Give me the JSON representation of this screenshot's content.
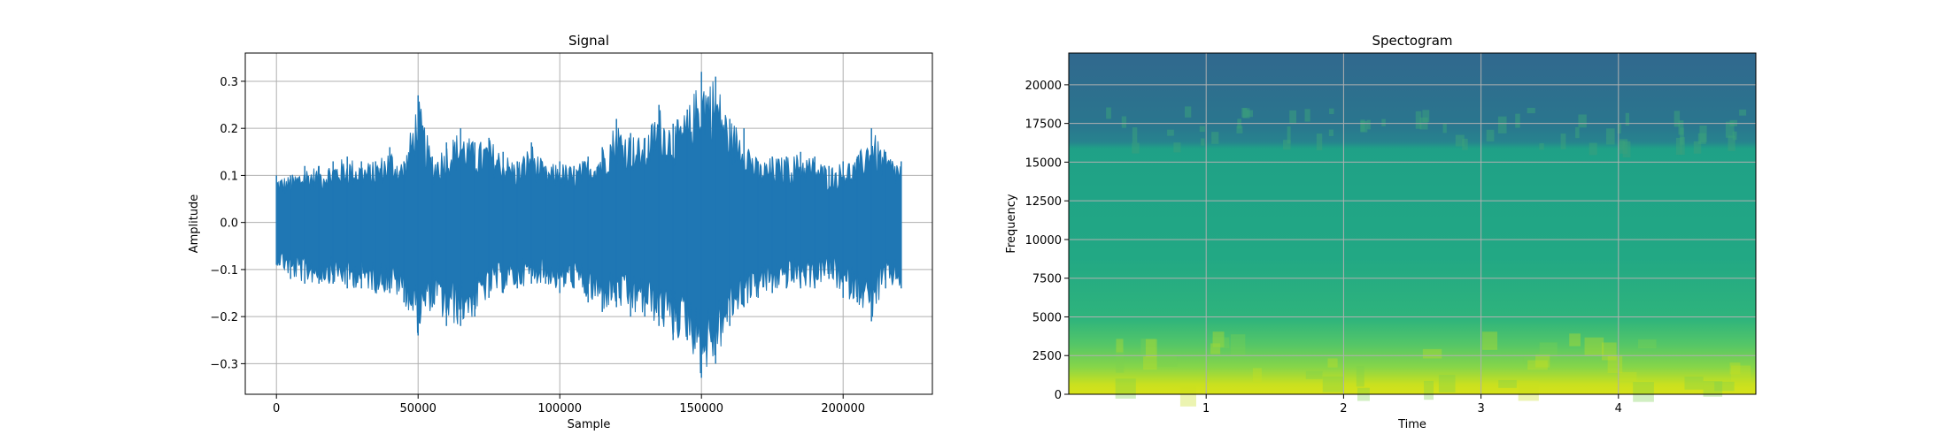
{
  "chart_data": [
    {
      "type": "line",
      "title": "Signal",
      "xlabel": "Sample",
      "ylabel": "Amplitude",
      "xlim": [
        -11000,
        231500
      ],
      "ylim": [
        -0.365,
        0.36
      ],
      "xticks": [
        0,
        50000,
        100000,
        150000,
        200000
      ],
      "xtick_labels": [
        "0",
        "50000",
        "100000",
        "150000",
        "200000"
      ],
      "yticks": [
        -0.3,
        -0.2,
        -0.1,
        0.0,
        0.1,
        0.2,
        0.3
      ],
      "ytick_labels": [
        "−0.3",
        "−0.2",
        "−0.1",
        "0.0",
        "0.1",
        "0.2",
        "0.3"
      ],
      "grid": true,
      "series": [
        {
          "color": "#1f77b4",
          "x": [
            0,
            5000,
            10000,
            15000,
            20000,
            25000,
            30000,
            35000,
            40000,
            45000,
            50000,
            55000,
            60000,
            65000,
            70000,
            75000,
            80000,
            85000,
            90000,
            95000,
            100000,
            105000,
            110000,
            115000,
            120000,
            125000,
            130000,
            135000,
            140000,
            145000,
            150000,
            155000,
            160000,
            165000,
            170000,
            175000,
            180000,
            185000,
            190000,
            195000,
            200000,
            205000,
            210000,
            215000,
            220500
          ],
          "upper": [
            0.1,
            0.1,
            0.12,
            0.12,
            0.13,
            0.14,
            0.13,
            0.13,
            0.16,
            0.13,
            0.27,
            0.14,
            0.17,
            0.2,
            0.17,
            0.18,
            0.15,
            0.13,
            0.17,
            0.12,
            0.13,
            0.12,
            0.14,
            0.16,
            0.22,
            0.19,
            0.18,
            0.25,
            0.21,
            0.24,
            0.32,
            0.31,
            0.22,
            0.2,
            0.13,
            0.14,
            0.14,
            0.15,
            0.14,
            0.12,
            0.13,
            0.14,
            0.2,
            0.15,
            0.13
          ],
          "lower": [
            -0.09,
            -0.12,
            -0.13,
            -0.13,
            -0.13,
            -0.14,
            -0.14,
            -0.15,
            -0.15,
            -0.17,
            -0.24,
            -0.18,
            -0.22,
            -0.22,
            -0.2,
            -0.16,
            -0.15,
            -0.14,
            -0.13,
            -0.13,
            -0.15,
            -0.14,
            -0.17,
            -0.19,
            -0.18,
            -0.2,
            -0.2,
            -0.22,
            -0.25,
            -0.25,
            -0.33,
            -0.3,
            -0.22,
            -0.18,
            -0.16,
            -0.15,
            -0.14,
            -0.14,
            -0.14,
            -0.12,
            -0.16,
            -0.17,
            -0.21,
            -0.14,
            -0.14
          ]
        }
      ]
    },
    {
      "type": "heatmap",
      "title": "Spectogram",
      "xlabel": "Time",
      "ylabel": "Frequency",
      "xlim": [
        0,
        5
      ],
      "ylim": [
        0,
        22050
      ],
      "xticks": [
        1,
        2,
        3,
        4
      ],
      "xtick_labels": [
        "1",
        "2",
        "3",
        "4"
      ],
      "yticks": [
        0,
        2500,
        5000,
        7500,
        10000,
        12500,
        15000,
        17500,
        20000
      ],
      "ytick_labels": [
        "0",
        "2500",
        "5000",
        "7500",
        "10000",
        "12500",
        "15000",
        "17500",
        "20000"
      ],
      "grid": true,
      "colormap": "viridis",
      "frequency_bands": [
        {
          "from": 0,
          "to": 1000,
          "level": 0.92
        },
        {
          "from": 1000,
          "to": 2500,
          "level": 0.82
        },
        {
          "from": 2500,
          "to": 5000,
          "level": 0.68
        },
        {
          "from": 5000,
          "to": 16000,
          "level": 0.55
        },
        {
          "from": 16000,
          "to": 18500,
          "level": 0.42
        },
        {
          "from": 18500,
          "to": 22050,
          "level": 0.35
        }
      ]
    }
  ]
}
